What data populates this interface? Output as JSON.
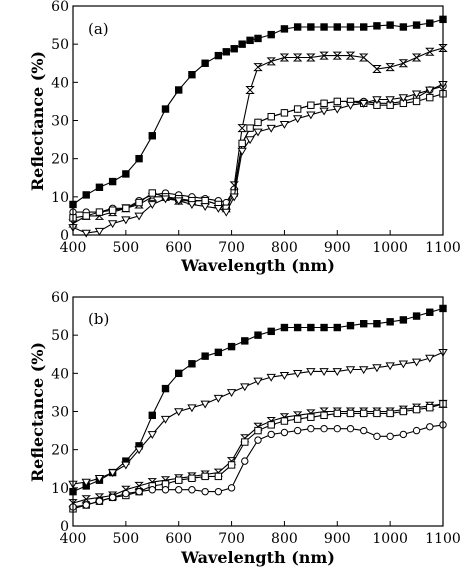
{
  "chart_data": [
    {
      "type": "line",
      "panel_label": "(a)",
      "xlabel": "Wavelength (nm)",
      "ylabel": "Reflectance (%)",
      "xlim": [
        400,
        1100
      ],
      "ylim": [
        0,
        60
      ],
      "x_ticks": [
        400,
        500,
        600,
        700,
        800,
        900,
        1000,
        1100
      ],
      "y_ticks": [
        0,
        10,
        20,
        30,
        40,
        50,
        60
      ],
      "x": [
        400,
        425,
        450,
        475,
        500,
        525,
        550,
        575,
        600,
        625,
        650,
        675,
        690,
        705,
        720,
        735,
        750,
        775,
        800,
        825,
        850,
        875,
        900,
        925,
        950,
        975,
        1000,
        1025,
        1050,
        1075,
        1100
      ],
      "series": [
        {
          "marker": "square-filled",
          "values": [
            8,
            10.5,
            12.5,
            14,
            16,
            20,
            26,
            33,
            38,
            42,
            45,
            47,
            48,
            48.8,
            50,
            51,
            51.5,
            52.5,
            54,
            54.5,
            54.5,
            54.5,
            54.5,
            54.5,
            54.5,
            54.8,
            55,
            54.5,
            55,
            55.5,
            56.5
          ]
        },
        {
          "marker": "bowtie",
          "values": [
            3,
            5,
            5,
            6,
            7,
            8,
            10,
            10,
            9,
            9,
            9,
            8,
            7,
            13,
            28,
            38,
            44,
            45.5,
            46.5,
            46.5,
            46.5,
            47,
            47,
            47,
            46.5,
            43.5,
            44,
            45,
            46.5,
            48,
            49
          ]
        },
        {
          "marker": "circle-open",
          "values": [
            6,
            6,
            6,
            7,
            7,
            9,
            10.5,
            11,
            10.5,
            10,
            9.5,
            9,
            8.5,
            12,
            24,
            28,
            29.5,
            31,
            32,
            33,
            34,
            34.5,
            35,
            35,
            35,
            34.5,
            34.5,
            35,
            36,
            38,
            39
          ]
        },
        {
          "marker": "square-open",
          "values": [
            4.5,
            5,
            6,
            6.5,
            7,
            8.5,
            11,
            10,
            9.5,
            9,
            9,
            8,
            7,
            11,
            24,
            28,
            29.5,
            31,
            32,
            33,
            34,
            34.5,
            35,
            35,
            34.5,
            34,
            34,
            34.5,
            35,
            36,
            37
          ]
        },
        {
          "marker": "triangle-down-open",
          "values": [
            2,
            0.5,
            1,
            3,
            4,
            5,
            8,
            9.5,
            9,
            8,
            7.5,
            7,
            6,
            10,
            22,
            25,
            27,
            28,
            29,
            30.5,
            31.5,
            32.5,
            33,
            34,
            34.5,
            35.5,
            35.5,
            36,
            37,
            38,
            39.5
          ]
        }
      ]
    },
    {
      "type": "line",
      "panel_label": "(b)",
      "xlabel": "Wavelength (nm)",
      "ylabel": "Reflectance (%)",
      "xlim": [
        400,
        1100
      ],
      "ylim": [
        0,
        60
      ],
      "x_ticks": [
        400,
        500,
        600,
        700,
        800,
        900,
        1000,
        1100
      ],
      "y_ticks": [
        0,
        10,
        20,
        30,
        40,
        50,
        60
      ],
      "x": [
        400,
        425,
        450,
        475,
        500,
        525,
        550,
        575,
        600,
        625,
        650,
        675,
        700,
        725,
        750,
        775,
        800,
        825,
        850,
        875,
        900,
        925,
        950,
        975,
        1000,
        1025,
        1050,
        1075,
        1100
      ],
      "series": [
        {
          "marker": "square-filled",
          "values": [
            9,
            10.5,
            12,
            14,
            17,
            21,
            29,
            36,
            40,
            42.5,
            44.5,
            45.5,
            47,
            48.5,
            50,
            51,
            52,
            52,
            52,
            52,
            52,
            52.5,
            53,
            53,
            53.5,
            54,
            55,
            56,
            57
          ]
        },
        {
          "marker": "triangle-down-open",
          "values": [
            11,
            11.5,
            12.5,
            14,
            16,
            20,
            24,
            28,
            30,
            31,
            32,
            33.5,
            35,
            36.5,
            38,
            39,
            39.5,
            40,
            40.5,
            40.5,
            40.5,
            41,
            41,
            41.5,
            42,
            42.5,
            43,
            44,
            45.5
          ]
        },
        {
          "marker": "bowtie",
          "values": [
            6,
            7,
            7.5,
            8,
            9.5,
            10.5,
            11.5,
            12,
            12.5,
            13,
            13.5,
            14,
            17,
            23,
            26,
            27.5,
            28.5,
            29,
            29.5,
            30,
            30,
            30,
            30,
            30,
            30,
            30.5,
            31,
            31.5,
            32
          ]
        },
        {
          "marker": "square-open",
          "values": [
            4.5,
            5.5,
            6.5,
            7.5,
            8,
            9,
            10.5,
            11,
            12,
            12.5,
            13,
            13,
            16,
            22,
            25,
            26.5,
            27.5,
            28,
            28.5,
            29,
            29.5,
            29.5,
            29.5,
            29.5,
            29.5,
            30,
            30.5,
            31,
            32
          ]
        },
        {
          "marker": "circle-open",
          "values": [
            5,
            5.5,
            6.5,
            7.5,
            8.5,
            9,
            9.5,
            9.5,
            9.5,
            9.5,
            9,
            9,
            10,
            17,
            22.5,
            24,
            24.5,
            25,
            25.5,
            25.5,
            25.5,
            25.5,
            25,
            23.5,
            23.5,
            24,
            25,
            26,
            26.5
          ]
        }
      ]
    }
  ]
}
